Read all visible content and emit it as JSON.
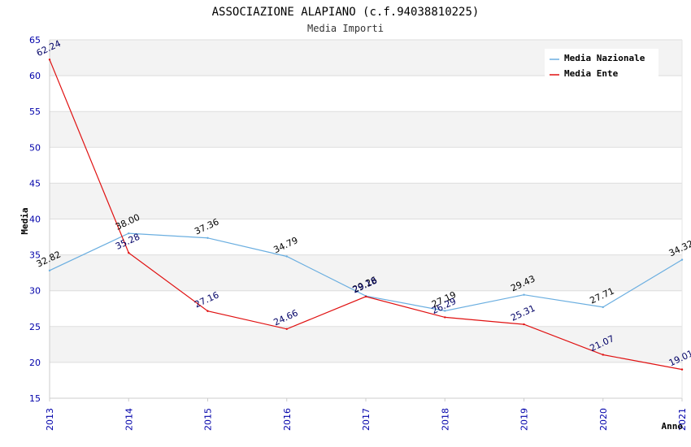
{
  "colors": {
    "nazionale": "#6aaee0",
    "ente": "#e01010",
    "axis_tick": "#0000aa",
    "label_nazionale": "#000000",
    "label_ente": "#000066",
    "band": "#f3f3f3",
    "grid": "#dddddd"
  },
  "chart_data": {
    "type": "line",
    "title": "ASSOCIAZIONE ALAPIANO (c.f.94038810225)",
    "subtitle": "Media Importi",
    "xlabel": "Anno",
    "ylabel": "Media",
    "ylim": [
      15,
      65
    ],
    "yticks": [
      "15",
      "20",
      "25",
      "30",
      "35",
      "40",
      "45",
      "50",
      "55",
      "60",
      "65"
    ],
    "categories": [
      "2013",
      "2014",
      "2015",
      "2016",
      "2017",
      "2018",
      "2019",
      "2020",
      "2021"
    ],
    "legend_position": "top-right",
    "series": [
      {
        "name": "Media Nazionale",
        "values": [
          32.82,
          38.0,
          37.36,
          34.79,
          29.26,
          27.19,
          29.43,
          27.71,
          34.32
        ],
        "labels": [
          "32.82",
          "38.00",
          "37.36",
          "34.79",
          "29.26",
          "27.19",
          "29.43",
          "27.71",
          "34.32"
        ]
      },
      {
        "name": "Media Ente",
        "values": [
          62.24,
          35.28,
          27.16,
          24.66,
          29.18,
          26.29,
          25.31,
          21.07,
          19.01
        ],
        "labels": [
          "62.24",
          "35.28",
          "27.16",
          "24.66",
          "29.18",
          "26.29",
          "25.31",
          "21.07",
          "19.01"
        ]
      }
    ]
  }
}
